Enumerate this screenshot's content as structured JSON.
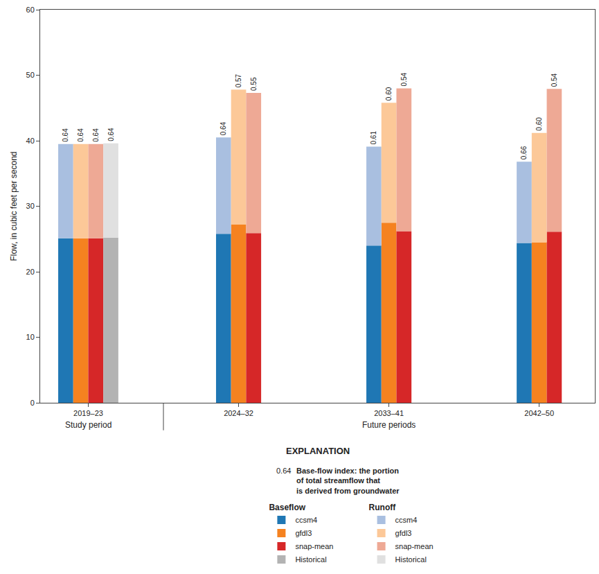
{
  "chart_data": {
    "type": "bar",
    "stacked": true,
    "data_labels": false,
    "grid": false,
    "categories": [
      "2019–23",
      "2024–32",
      "2033–41",
      "2042–50"
    ],
    "category_groups": [
      {
        "label": "Study period",
        "categories": [
          "2019–23"
        ]
      },
      {
        "label": "Future periods",
        "categories": [
          "2024–32",
          "2033–41",
          "2042–50"
        ]
      }
    ],
    "y_label": "Flow, in cubic feet per second",
    "ylim": [
      0,
      60
    ],
    "yticks": [
      0,
      10,
      20,
      30,
      40,
      50,
      60
    ],
    "explanation": {
      "title": "EXPLANATION",
      "index_sample": "0.64",
      "index_note": [
        "Base-flow index: the portion",
        "of total streamflow that",
        "is derived from groundwater"
      ]
    },
    "components": [
      {
        "name": "Baseflow",
        "series": [
          {
            "name": "ccsm4",
            "color": "#1f77b4",
            "values": [
              25.1,
              25.8,
              24.0,
              24.4
            ]
          },
          {
            "name": "gfdl3",
            "color": "#f58220",
            "values": [
              25.1,
              27.2,
              27.5,
              24.5
            ]
          },
          {
            "name": "snap-mean",
            "color": "#d62728",
            "values": [
              25.1,
              25.9,
              26.2,
              26.1
            ]
          },
          {
            "name": "Historical",
            "color": "#b3b3b3",
            "values": [
              25.2,
              null,
              null,
              null
            ]
          }
        ]
      },
      {
        "name": "Runoff",
        "series": [
          {
            "name": "ccsm4",
            "color": "#a9bfe0",
            "values": [
              14.4,
              14.7,
              15.1,
              12.4
            ],
            "index_values": [
              0.64,
              0.64,
              0.61,
              0.66
            ],
            "index_labels": [
              "0.64",
              "0.64",
              "0.61",
              "0.66"
            ]
          },
          {
            "name": "gfdl3",
            "color": "#fcc898",
            "values": [
              14.4,
              20.6,
              18.3,
              16.7
            ],
            "index_values": [
              0.64,
              0.57,
              0.6,
              0.6
            ],
            "index_labels": [
              "0.64",
              "0.57",
              "0.60",
              "0.60"
            ]
          },
          {
            "name": "snap-mean",
            "color": "#eea995",
            "values": [
              14.4,
              21.4,
              21.8,
              21.8
            ],
            "index_values": [
              0.64,
              0.55,
              0.54,
              0.54
            ],
            "index_labels": [
              "0.64",
              "0.55",
              "0.54",
              "0.54"
            ]
          },
          {
            "name": "Historical",
            "color": "#e0e0e0",
            "values": [
              14.4,
              null,
              null,
              null
            ],
            "index_values": [
              0.64,
              null,
              null,
              null
            ],
            "index_labels": [
              "0.64",
              null,
              null,
              null
            ]
          }
        ]
      }
    ]
  }
}
